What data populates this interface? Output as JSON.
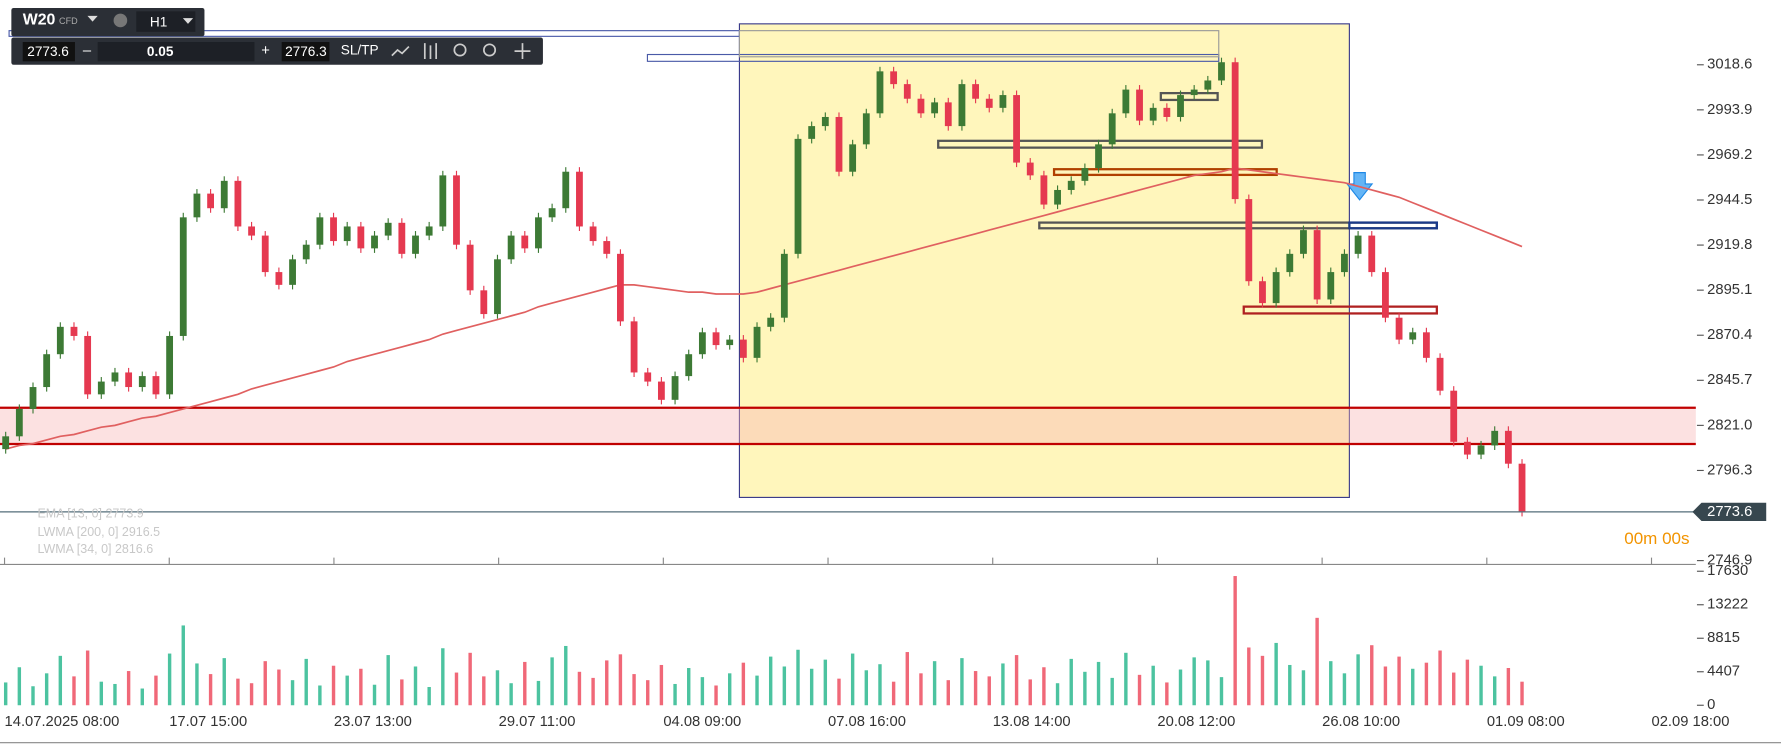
{
  "toolbar": {
    "symbol": "W20",
    "kind": "CFD",
    "timeframe": "H1",
    "bid": "2773.6",
    "minus": "–",
    "volume": "0.05",
    "plus": "+",
    "ask": "2776.3",
    "sltp": "SL/TP"
  },
  "chart_data": {
    "type": "candlestick",
    "open": [
      2808,
      2815,
      2830,
      2842,
      2860,
      2875,
      2870,
      2838,
      2845,
      2850,
      2842,
      2848,
      2838,
      2870,
      2935,
      2948,
      2940,
      2955,
      2930,
      2925,
      2905,
      2898,
      2912,
      2920,
      2935,
      2922,
      2930,
      2918,
      2925,
      2932,
      2915,
      2925,
      2930,
      2958,
      2920,
      2895,
      2882,
      2912,
      2925,
      2918,
      2935,
      2940,
      2960,
      2930,
      2922,
      2915,
      2878,
      2850,
      2845,
      2835,
      2848,
      2860,
      2872,
      2865,
      2868,
      2858,
      2875,
      2880,
      2915,
      2978,
      2985,
      2990,
      2960,
      2975,
      2992,
      3015,
      3008,
      3000,
      2992,
      2998,
      2985,
      3008,
      3000,
      2995,
      3002,
      2965,
      2958,
      2942,
      2950,
      2955,
      2962,
      2975,
      2992,
      3005,
      2988,
      2995,
      2990,
      3002,
      3005,
      3010,
      3020,
      2945,
      2900,
      2888,
      2905,
      2915,
      2928,
      2890,
      2905,
      2915,
      2925,
      2905,
      2880,
      2868,
      2872,
      2858,
      2840,
      2812,
      2805,
      2810,
      2818,
      2800
    ],
    "close": [
      2815,
      2830,
      2842,
      2860,
      2875,
      2870,
      2838,
      2845,
      2850,
      2842,
      2848,
      2838,
      2870,
      2935,
      2948,
      2940,
      2955,
      2930,
      2925,
      2905,
      2898,
      2912,
      2920,
      2935,
      2922,
      2930,
      2918,
      2925,
      2932,
      2915,
      2925,
      2930,
      2958,
      2920,
      2895,
      2882,
      2912,
      2925,
      2918,
      2935,
      2940,
      2960,
      2930,
      2922,
      2915,
      2878,
      2850,
      2845,
      2835,
      2848,
      2860,
      2872,
      2865,
      2868,
      2858,
      2875,
      2880,
      2915,
      2978,
      2985,
      2990,
      2960,
      2975,
      2992,
      3015,
      3008,
      3000,
      2992,
      2998,
      2985,
      3008,
      3000,
      2995,
      3002,
      2965,
      2958,
      2942,
      2950,
      2955,
      2962,
      2975,
      2992,
      3005,
      2988,
      2995,
      2990,
      3002,
      3005,
      3010,
      3020,
      2945,
      2900,
      2888,
      2905,
      2915,
      2928,
      2890,
      2905,
      2915,
      2925,
      2905,
      2880,
      2868,
      2872,
      2858,
      2840,
      2812,
      2805,
      2810,
      2818,
      2800,
      2773.6
    ],
    "lwma": {
      "name": "LWMA [200, 0] 2916.5",
      "color": "#e06060",
      "values": [
        2808,
        2810,
        2811,
        2813,
        2815,
        2816,
        2818,
        2820,
        2821,
        2823,
        2825,
        2826,
        2828,
        2830,
        2832,
        2834,
        2836,
        2838,
        2841,
        2843,
        2845,
        2847,
        2849,
        2851,
        2853,
        2856,
        2858,
        2860,
        2862,
        2864,
        2866,
        2868,
        2871,
        2873,
        2875,
        2877,
        2879,
        2881,
        2883,
        2886,
        2888,
        2890,
        2892,
        2894,
        2896,
        2898,
        2898,
        2897,
        2896,
        2895,
        2894,
        2894,
        2893,
        2893,
        2893,
        2894,
        2896,
        2898,
        2900,
        2902,
        2904,
        2906,
        2908,
        2910,
        2912,
        2914,
        2916,
        2918,
        2920,
        2922,
        2924,
        2926,
        2928,
        2930,
        2932,
        2934,
        2936,
        2938,
        2940,
        2942,
        2944,
        2946,
        2948,
        2950,
        2952,
        2954,
        2956,
        2958,
        2959,
        2960,
        2962,
        2961,
        2960,
        2959,
        2958,
        2957,
        2956,
        2955,
        2954,
        2952,
        2950,
        2948,
        2946,
        2943,
        2940,
        2937,
        2934,
        2931,
        2928,
        2925,
        2922,
        2919
      ]
    },
    "legend": [
      "EMA [13, 0] 2773.9",
      "LWMA [34, 0] 2816.6"
    ],
    "up_color": "#3d7a35",
    "down_color": "#e53950",
    "ylim": [
      2744.8,
      3054.1
    ],
    "yticks": [
      3018.6,
      2993.9,
      2969.2,
      2944.5,
      2919.8,
      2895.1,
      2870.4,
      2845.7,
      {
        "value": 2821,
        "label": "2821.0"
      },
      2796.3,
      2746.9
    ],
    "current_price": 2773.6,
    "timer": "00m 00s",
    "volume": {
      "values": [
        3000,
        5000,
        2500,
        4200,
        6500,
        3800,
        7200,
        3100,
        2800,
        4500,
        2200,
        3900,
        6800,
        10500,
        5500,
        4100,
        6200,
        3500,
        2900,
        5800,
        4700,
        3300,
        6100,
        2600,
        5200,
        3900,
        4800,
        2700,
        6600,
        3400,
        5100,
        2400,
        7500,
        4300,
        6900,
        3800,
        4600,
        2900,
        5700,
        3200,
        6300,
        7800,
        4400,
        3600,
        5900,
        6700,
        4100,
        3300,
        5300,
        2800,
        4900,
        3700,
        2600,
        4200,
        5600,
        3900,
        6400,
        5100,
        7300,
        4800,
        6000,
        3500,
        6800,
        4600,
        5400,
        3100,
        7000,
        4200,
        5800,
        3300,
        6200,
        4500,
        3800,
        5500,
        6600,
        3400,
        5000,
        2900,
        6100,
        4400,
        5700,
        3600,
        6900,
        4000,
        5200,
        3000,
        4700,
        6300,
        5900,
        3700,
        17000,
        7600,
        6500,
        8200,
        5300,
        4600,
        11500,
        5800,
        4200,
        6700,
        7900,
        5100,
        6400,
        4800,
        5600,
        7200,
        4300,
        6000,
        5200,
        3800,
        4900,
        3100
      ],
      "up_color": "#4cc3a0",
      "down_color": "#f06878",
      "ylim": [
        0,
        17630
      ],
      "yticks": [
        17630,
        13222,
        8815,
        4407,
        0
      ]
    },
    "time_labels": [
      "14.07.2025 08:00",
      "17.07 15:00",
      "23.07 13:00",
      "29.07 11:00",
      "04.08 09:00",
      "07.08 16:00",
      "13.08 14:00",
      "20.08 12:00",
      "26.08 10:00",
      "01.09 08:00",
      "02.09 18:00"
    ]
  }
}
